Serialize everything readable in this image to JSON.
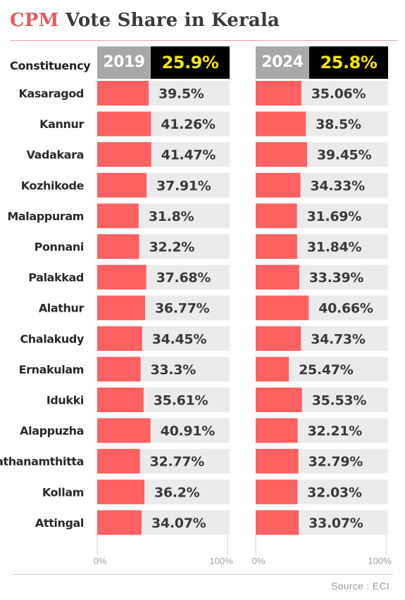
{
  "title": {
    "accent": "CPM",
    "rest": " Vote Share in Kerala"
  },
  "column_header": "Constituency",
  "source": "Source : ECI",
  "colors": {
    "bar": "#fe6161",
    "track": "#ebebeb",
    "title_accent": "#e45b5b",
    "year_box": "#a8a8a8",
    "total_box": "#000000",
    "total_text": "#f5e600"
  },
  "chart_data": {
    "type": "bar",
    "orientation": "horizontal",
    "categories": [
      "Kasaragod",
      "Kannur",
      "Vadakara",
      "Kozhikode",
      "Malappuram",
      "Ponnani ",
      "Palakkad",
      "Alathur",
      "Chalakudy",
      "Ernakulam",
      "Idukki",
      "Alappuzha",
      "Pathanamthitta",
      "Kollam",
      "Attingal"
    ],
    "xlim": [
      0,
      100
    ],
    "series": [
      {
        "name": "2019",
        "total": "25.9%",
        "values": [
          39.5,
          41.26,
          41.47,
          37.91,
          31.8,
          32.2,
          37.68,
          36.77,
          34.45,
          33.3,
          35.61,
          40.91,
          32.77,
          36.2,
          34.07
        ],
        "labels": [
          "39.5%",
          "41.26%",
          "41.47%",
          "37.91%",
          "31.8%",
          "32.2%",
          "37.68%",
          "36.77%",
          "34.45%",
          "33.3%",
          "35.61%",
          "40.91%",
          "32.77%",
          "36.2%",
          "34.07%"
        ],
        "ticks": [
          "0%",
          "100%"
        ]
      },
      {
        "name": "2024",
        "total": "25.8%",
        "values": [
          35.06,
          38.5,
          39.45,
          34.33,
          31.69,
          31.84,
          33.39,
          40.66,
          34.73,
          25.47,
          35.53,
          32.21,
          32.79,
          32.03,
          33.07
        ],
        "labels": [
          "35.06%",
          "38.5%",
          "39.45%",
          "34.33%",
          "31.69%",
          "31.84%",
          "33.39%",
          "40.66%",
          "34.73%",
          "25.47%",
          "35.53%",
          "32.21%",
          "32.79%",
          "32.03%",
          "33.07%"
        ],
        "ticks": [
          "0%",
          "100%"
        ]
      }
    ]
  }
}
